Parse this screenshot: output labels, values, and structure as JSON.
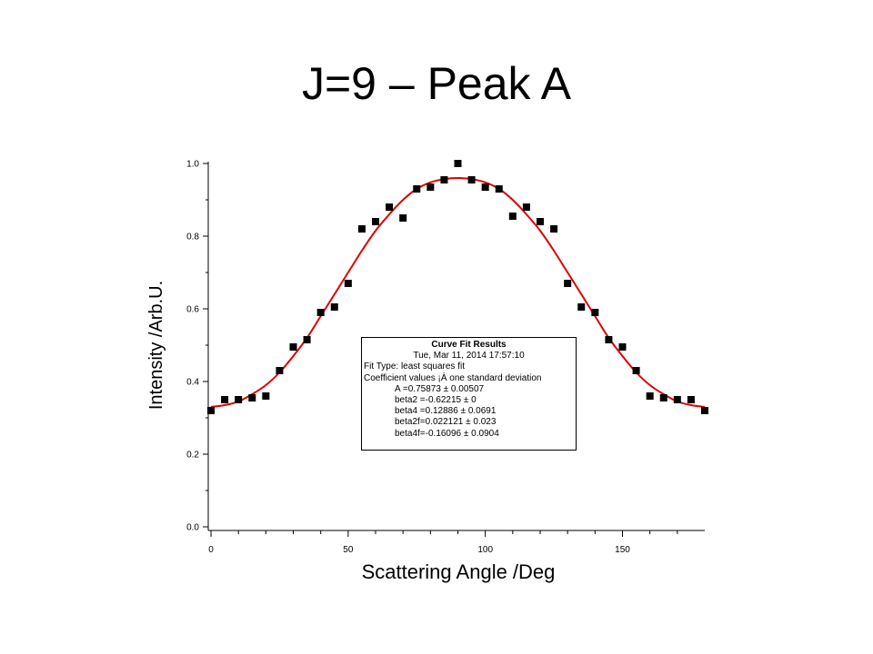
{
  "slide": {
    "title": "J=9 – Peak A"
  },
  "chart_data": {
    "type": "scatter",
    "xlabel": "Scattering Angle /Deg",
    "ylabel": "Intensity /Arb.U.",
    "xlim": [
      -1,
      180
    ],
    "ylim": [
      -0.01,
      1.0
    ],
    "x_ticks": [
      0,
      50,
      100,
      150
    ],
    "x_tick_labels": [
      "0",
      "50",
      "100",
      "150"
    ],
    "y_ticks": [
      0.0,
      0.2,
      0.4,
      0.6,
      0.8,
      1.0
    ],
    "y_tick_labels": [
      "0.0",
      "0.2",
      "0.4",
      "0.6",
      "0.8",
      "1.0"
    ],
    "grid": false,
    "marker_color": "#000000",
    "fit_color": "#dd0000",
    "series": [
      {
        "marker": "square",
        "x": [
          0,
          5,
          10,
          15,
          20,
          25,
          30,
          35,
          40,
          45,
          50,
          55,
          60,
          65,
          70,
          75,
          80,
          85,
          90,
          95,
          100,
          105,
          110,
          115,
          120,
          125,
          130,
          135,
          140,
          145,
          150,
          155,
          160,
          165,
          170,
          175,
          180
        ],
        "y": [
          0.32,
          0.35,
          0.35,
          0.355,
          0.36,
          0.43,
          0.495,
          0.515,
          0.59,
          0.605,
          0.67,
          0.82,
          0.84,
          0.88,
          0.85,
          0.93,
          0.935,
          0.955,
          1.0,
          0.955,
          0.935,
          0.93,
          0.855,
          0.88,
          0.84,
          0.82,
          0.67,
          0.605,
          0.59,
          0.515,
          0.495,
          0.43,
          0.36,
          0.355,
          0.35,
          0.35,
          0.32
        ]
      },
      {
        "style": "line",
        "x": [
          0,
          5,
          10,
          15,
          20,
          25,
          30,
          35,
          40,
          45,
          50,
          55,
          60,
          65,
          70,
          75,
          80,
          85,
          90,
          95,
          100,
          105,
          110,
          115,
          120,
          125,
          130,
          135,
          140,
          145,
          150,
          155,
          160,
          165,
          170,
          175,
          180
        ],
        "y": [
          0.33,
          0.335,
          0.345,
          0.365,
          0.39,
          0.425,
          0.47,
          0.52,
          0.58,
          0.64,
          0.7,
          0.76,
          0.815,
          0.86,
          0.9,
          0.93,
          0.948,
          0.957,
          0.96,
          0.957,
          0.948,
          0.93,
          0.9,
          0.86,
          0.815,
          0.76,
          0.7,
          0.64,
          0.58,
          0.52,
          0.47,
          0.425,
          0.39,
          0.365,
          0.345,
          0.335,
          0.33
        ]
      }
    ],
    "annotation": {
      "title": "Curve Fit Results",
      "date": "Tue, Mar 11, 2014 17:57:10",
      "fit_type": "Fit Type: least squares fit",
      "coef_header": "Coefficient values ¡À one standard deviation",
      "coefficients": [
        "A      =0.75873 ± 0.00507",
        "beta2 =-0.62215 ± 0",
        "beta4 =0.12886 ± 0.0691",
        "beta2f=0.022121 ± 0.023",
        "beta4f=-0.16096 ± 0.0904"
      ]
    }
  }
}
